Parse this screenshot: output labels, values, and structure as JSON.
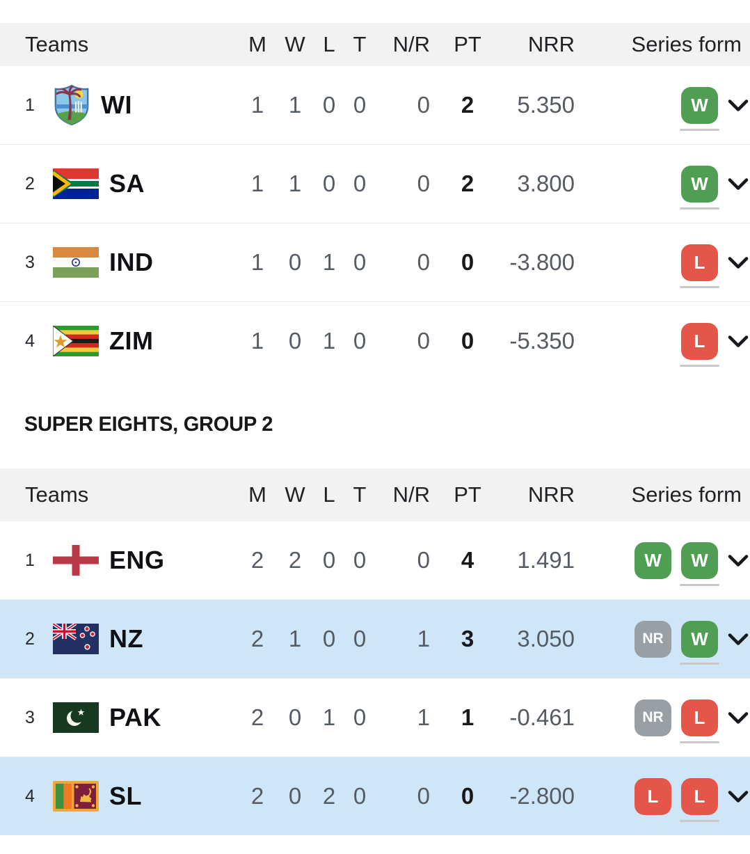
{
  "section_heading": "SUPER EIGHTS, GROUP 2",
  "colors": {
    "header_bg": "#f2f2f2",
    "row_highlight": "#cfe6f8",
    "row_border": "#e8e8e8",
    "win_badge": "#4f9e53",
    "loss_badge": "#e4564a",
    "no_result_badge": "#99a0a5",
    "badge_underline": "#c8c8c8",
    "chevron": "#17181b"
  },
  "tables": [
    {
      "columns": {
        "teams": "Teams",
        "m": "M",
        "w": "W",
        "l": "L",
        "t": "T",
        "nr": "N/R",
        "pt": "PT",
        "nrr": "NRR",
        "form": "Series form"
      },
      "rows": [
        {
          "rank": "1",
          "team": "WI",
          "flag": "wi",
          "m": "1",
          "w": "1",
          "l": "0",
          "t": "0",
          "nr": "0",
          "pt": "2",
          "nrr": "5.350",
          "form": [
            "W"
          ],
          "highlight": false
        },
        {
          "rank": "2",
          "team": "SA",
          "flag": "sa",
          "m": "1",
          "w": "1",
          "l": "0",
          "t": "0",
          "nr": "0",
          "pt": "2",
          "nrr": "3.800",
          "form": [
            "W"
          ],
          "highlight": false
        },
        {
          "rank": "3",
          "team": "IND",
          "flag": "ind",
          "m": "1",
          "w": "0",
          "l": "1",
          "t": "0",
          "nr": "0",
          "pt": "0",
          "nrr": "-3.800",
          "form": [
            "L"
          ],
          "highlight": false
        },
        {
          "rank": "4",
          "team": "ZIM",
          "flag": "zim",
          "m": "1",
          "w": "0",
          "l": "1",
          "t": "0",
          "nr": "0",
          "pt": "0",
          "nrr": "-5.350",
          "form": [
            "L"
          ],
          "highlight": false
        }
      ]
    },
    {
      "columns": {
        "teams": "Teams",
        "m": "M",
        "w": "W",
        "l": "L",
        "t": "T",
        "nr": "N/R",
        "pt": "PT",
        "nrr": "NRR",
        "form": "Series form"
      },
      "rows": [
        {
          "rank": "1",
          "team": "ENG",
          "flag": "eng",
          "m": "2",
          "w": "2",
          "l": "0",
          "t": "0",
          "nr": "0",
          "pt": "4",
          "nrr": "1.491",
          "form": [
            "W",
            "W"
          ],
          "highlight": false
        },
        {
          "rank": "2",
          "team": "NZ",
          "flag": "nz",
          "m": "2",
          "w": "1",
          "l": "0",
          "t": "0",
          "nr": "1",
          "pt": "3",
          "nrr": "3.050",
          "form": [
            "NR",
            "W"
          ],
          "highlight": true
        },
        {
          "rank": "3",
          "team": "PAK",
          "flag": "pak",
          "m": "2",
          "w": "0",
          "l": "1",
          "t": "0",
          "nr": "1",
          "pt": "1",
          "nrr": "-0.461",
          "form": [
            "NR",
            "L"
          ],
          "highlight": false
        },
        {
          "rank": "4",
          "team": "SL",
          "flag": "sl",
          "m": "2",
          "w": "0",
          "l": "2",
          "t": "0",
          "nr": "0",
          "pt": "0",
          "nrr": "-2.800",
          "form": [
            "L",
            "L"
          ],
          "highlight": true
        }
      ]
    }
  ]
}
